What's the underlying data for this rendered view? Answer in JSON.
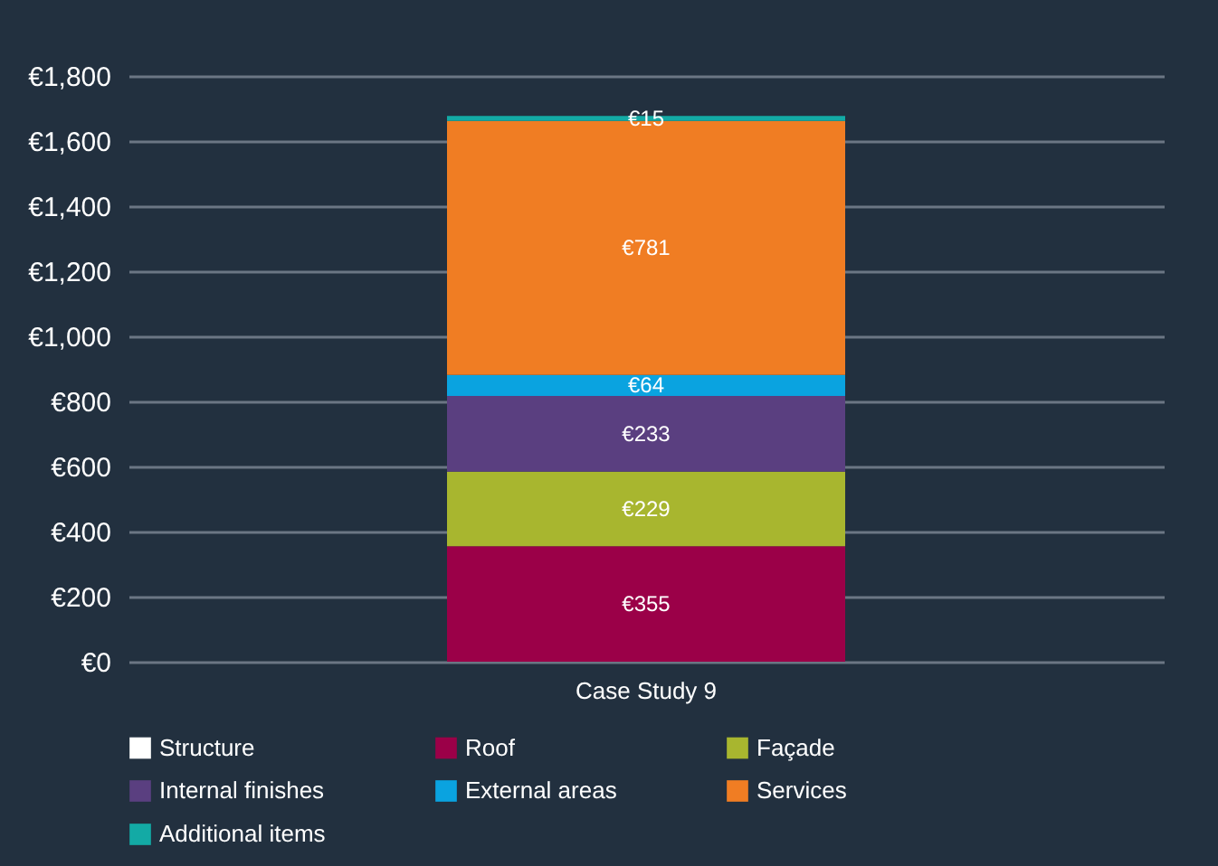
{
  "chart_data": {
    "type": "bar",
    "stacked": true,
    "categories": [
      "Case Study 9"
    ],
    "series": [
      {
        "name": "Structure",
        "color": "#ffffff",
        "values": [
          null
        ],
        "value_labels": [
          null
        ]
      },
      {
        "name": "Roof",
        "color": "#9b0048",
        "values": [
          355
        ],
        "value_labels": [
          "€355"
        ]
      },
      {
        "name": "Façade",
        "color": "#a8b62f",
        "values": [
          229
        ],
        "value_labels": [
          "€229"
        ]
      },
      {
        "name": "Internal finishes",
        "color": "#5a3f80",
        "values": [
          233
        ],
        "value_labels": [
          "€233"
        ]
      },
      {
        "name": "External areas",
        "color": "#0aa3e0",
        "values": [
          64
        ],
        "value_labels": [
          "€64"
        ]
      },
      {
        "name": "Services",
        "color": "#f07d23",
        "values": [
          781
        ],
        "value_labels": [
          "€781"
        ]
      },
      {
        "name": "Additional items",
        "color": "#13aaa5",
        "values": [
          15
        ],
        "value_labels": [
          "€15"
        ]
      }
    ],
    "ylim": [
      0,
      1800
    ],
    "yticks": [
      {
        "value": 0,
        "label": "€0"
      },
      {
        "value": 200,
        "label": "€200"
      },
      {
        "value": 400,
        "label": "€400"
      },
      {
        "value": 600,
        "label": "€600"
      },
      {
        "value": 800,
        "label": "€800"
      },
      {
        "value": 1000,
        "label": "€1,000"
      },
      {
        "value": 1200,
        "label": "€1,200"
      },
      {
        "value": 1400,
        "label": "€1,400"
      },
      {
        "value": 1600,
        "label": "€1,600"
      },
      {
        "value": 1800,
        "label": "€1,800"
      }
    ],
    "grid": "y",
    "legend": "bottom"
  }
}
